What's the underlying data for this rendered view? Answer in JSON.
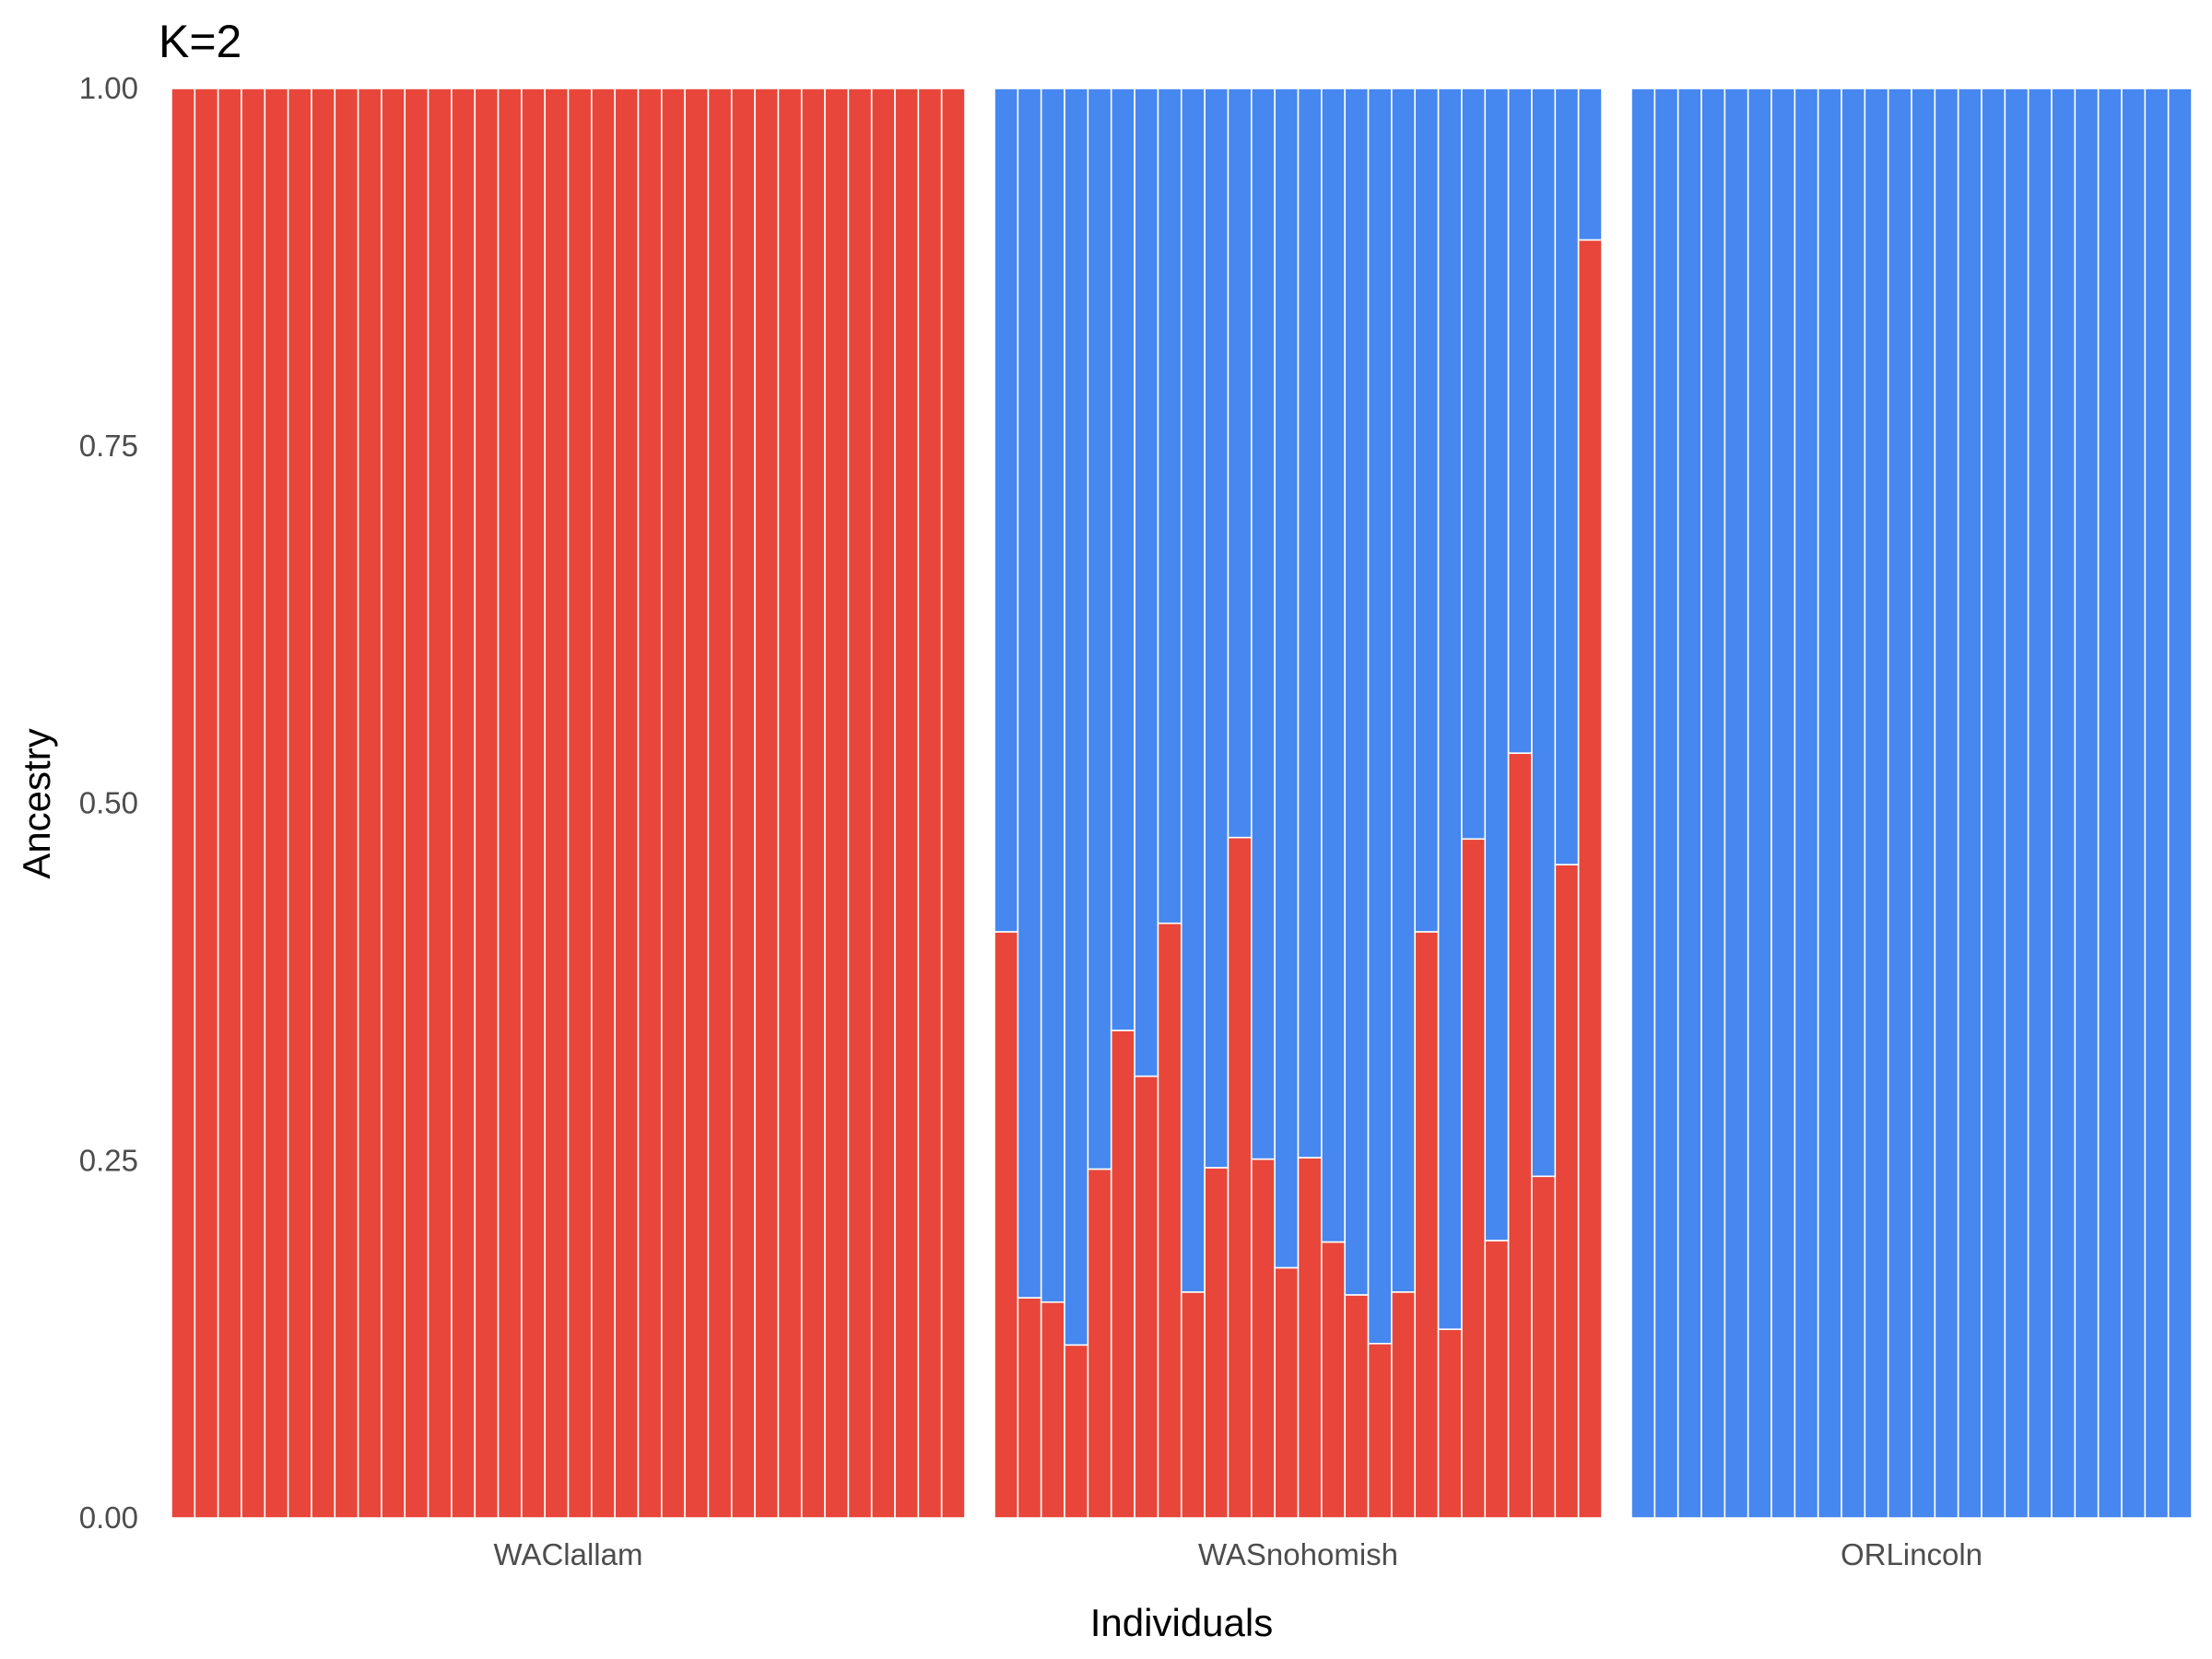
{
  "chart_data": {
    "type": "bar",
    "stacked": true,
    "title": "K=2",
    "xlabel": "Individuals",
    "ylabel": "Ancestry",
    "ylim": [
      0,
      1
    ],
    "yticks": [
      "0.00",
      "0.25",
      "0.50",
      "0.75",
      "1.00"
    ],
    "grid": false,
    "legend": "none",
    "colors": {
      "red_cluster": "#E8463A",
      "blue_cluster": "#4687F0"
    },
    "groups": [
      {
        "name": "WAClallam",
        "n": 34,
        "red": [
          1,
          1,
          1,
          1,
          1,
          1,
          1,
          1,
          1,
          1,
          1,
          1,
          1,
          1,
          1,
          1,
          1,
          1,
          1,
          1,
          1,
          1,
          1,
          1,
          1,
          1,
          1,
          1,
          1,
          1,
          1,
          1,
          1,
          1
        ]
      },
      {
        "name": "WASnohomish",
        "n": 26,
        "red": [
          0.41,
          0.154,
          0.151,
          0.121,
          0.244,
          0.341,
          0.309,
          0.416,
          0.158,
          0.245,
          0.476,
          0.251,
          0.175,
          0.252,
          0.193,
          0.156,
          0.122,
          0.158,
          0.41,
          0.132,
          0.475,
          0.194,
          0.535,
          0.239,
          0.457,
          0.894
        ]
      },
      {
        "name": "ORLincoln",
        "n": 24,
        "red": [
          0,
          0,
          0,
          0,
          0,
          0,
          0,
          0,
          0,
          0,
          0,
          0,
          0,
          0,
          0,
          0,
          0,
          0,
          0,
          0,
          0,
          0,
          0,
          0
        ]
      }
    ]
  }
}
